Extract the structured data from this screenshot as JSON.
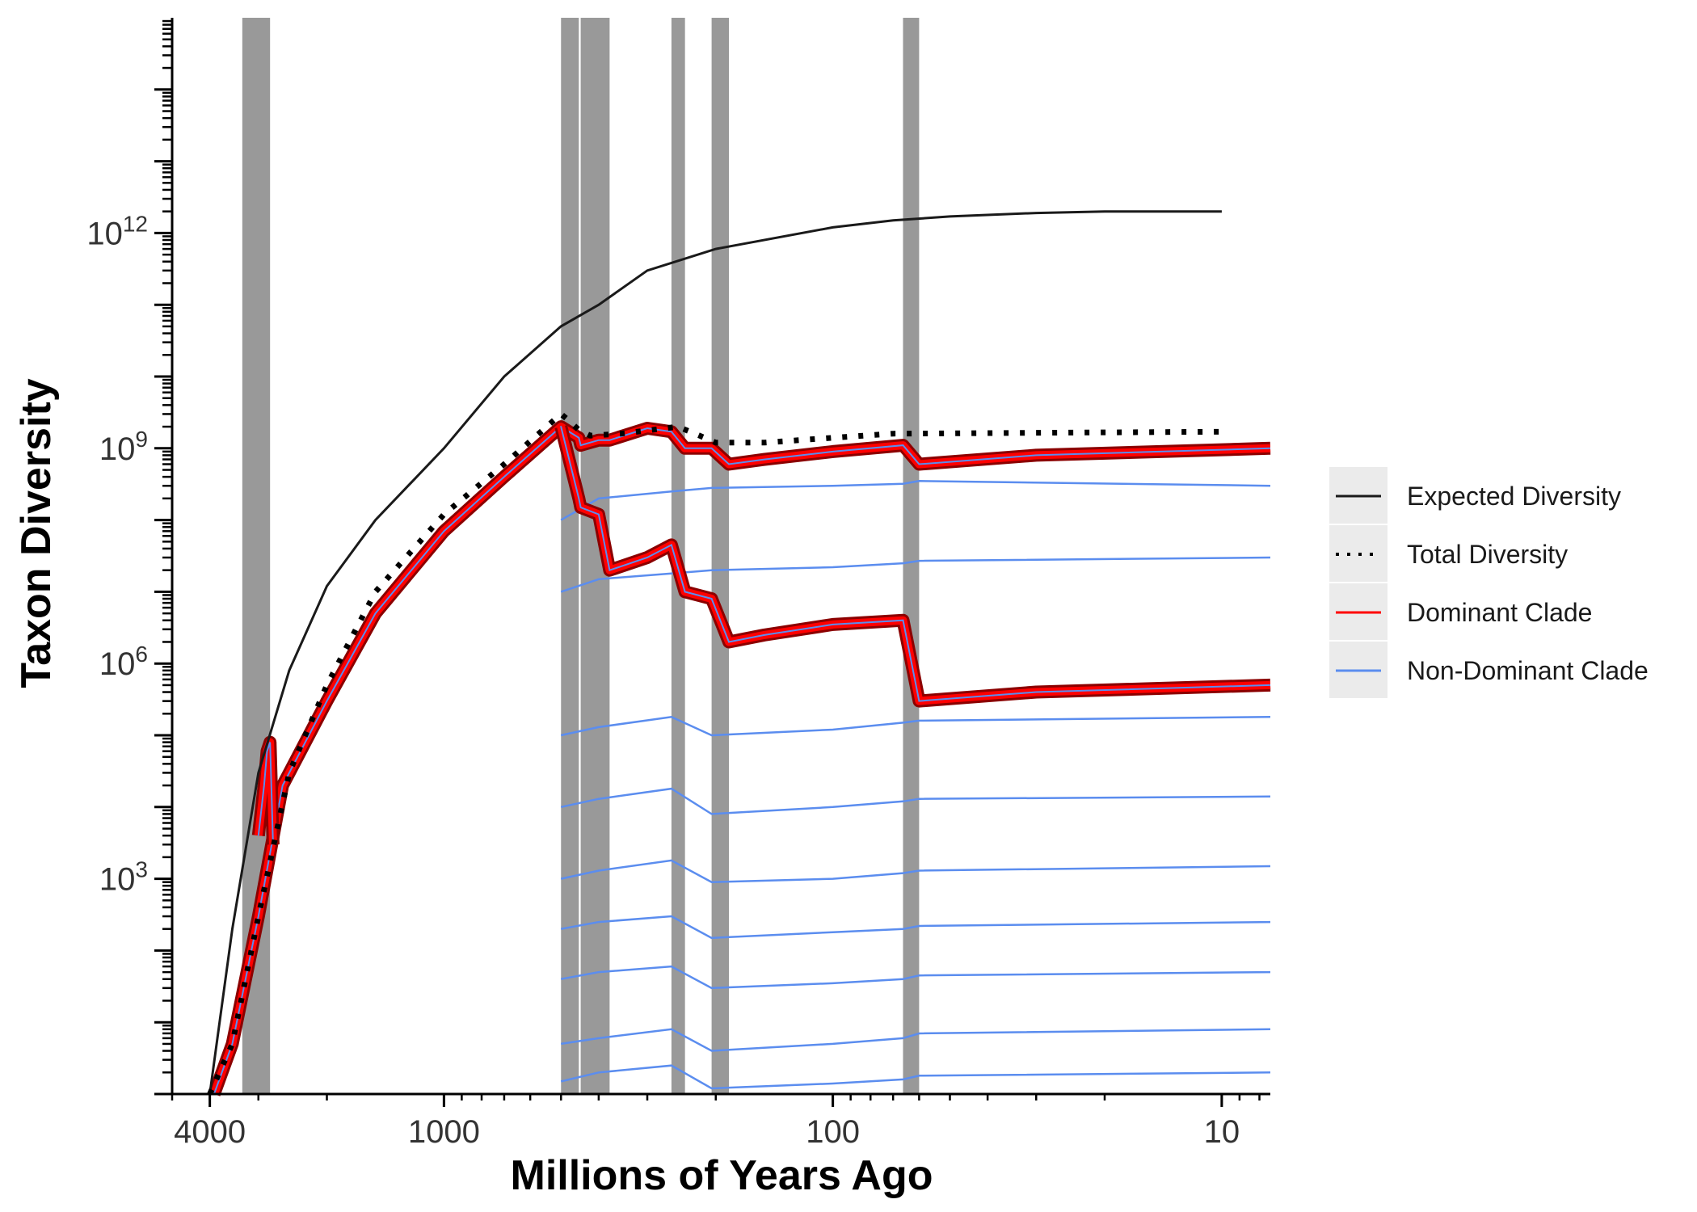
{
  "chart_data": {
    "type": "line",
    "title": "",
    "xlabel": "Millions of Years Ago",
    "ylabel": "Taxon Diversity",
    "x_scale": "log-reversed",
    "y_scale": "log",
    "xlim": [
      5000,
      7.5
    ],
    "ylim": [
      1,
      1000000000000000.0
    ],
    "x_ticks": [
      {
        "value": 4000,
        "label": "4000"
      },
      {
        "value": 1000,
        "label": "1000"
      },
      {
        "value": 100,
        "label": "100"
      },
      {
        "value": 10,
        "label": "10"
      }
    ],
    "y_ticks": [
      {
        "value": 1000,
        "base": "10",
        "exp": "3"
      },
      {
        "value": 1000000,
        "base": "10",
        "exp": "6"
      },
      {
        "value": 1000000000,
        "base": "10",
        "exp": "9"
      },
      {
        "value": 1000000000000,
        "base": "10",
        "exp": "12"
      }
    ],
    "grid": false,
    "legend_position": "right",
    "mass_extinction_bands": [
      [
        3300,
        2800
      ],
      [
        500,
        450
      ],
      [
        445,
        375
      ],
      [
        260,
        240
      ],
      [
        205,
        185
      ],
      [
        66,
        60
      ]
    ],
    "colors": {
      "expected": "#1a1a1a",
      "total": "#000000",
      "dominant": "#ff0000",
      "dominant_outline": "#8b0000",
      "non_dominant": "#5b8def",
      "band": "#999999",
      "legend_key_bg": "#ebebeb"
    },
    "legend": [
      {
        "label": "Expected Diversity",
        "style": "solid",
        "color": "#1a1a1a"
      },
      {
        "label": "Total Diversity",
        "style": "dotted",
        "color": "#000000"
      },
      {
        "label": "Dominant Clade",
        "style": "solid",
        "color": "#ff0000"
      },
      {
        "label": "Non-Dominant Clade",
        "style": "solid",
        "color": "#5b8def"
      }
    ],
    "series": [
      {
        "name": "Expected Diversity",
        "x": [
          4000,
          3500,
          3000,
          2500,
          2000,
          1500,
          1000,
          700,
          500,
          400,
          300,
          200,
          100,
          70,
          50,
          30,
          20,
          10
        ],
        "y": [
          1,
          200.0,
          30000.0,
          800000.0,
          12000000.0,
          100000000.0,
          1000000000.0,
          10000000000.0,
          50000000000.0,
          100000000000.0,
          300000000000.0,
          600000000000.0,
          1200000000000.0,
          1500000000000.0,
          1700000000000.0,
          1900000000000.0,
          2000000000000.0,
          2000000000000.0
        ]
      },
      {
        "name": "Total Diversity",
        "x": [
          4000,
          3500,
          3000,
          2500,
          2000,
          1500,
          1000,
          700,
          500,
          480,
          450,
          420,
          350,
          250,
          220,
          200,
          150,
          100,
          70,
          10
        ],
        "y": [
          1,
          5,
          300.0,
          30000.0,
          500000.0,
          10000000.0,
          120000000.0,
          600000000.0,
          3000000000.0,
          2500000000.0,
          1800000000.0,
          1500000000.0,
          1600000000.0,
          2000000000.0,
          1500000000.0,
          1200000000.0,
          1200000000.0,
          1400000000.0,
          1600000000.0,
          1700000000.0
        ]
      },
      {
        "name": "Dominant Clade",
        "x": [
          3900,
          3500,
          3000,
          2600,
          2000,
          1500,
          1000,
          700,
          500,
          450,
          445,
          400,
          375,
          300,
          260,
          240,
          205,
          185,
          150,
          100,
          66,
          60,
          30,
          7.5
        ],
        "y": [
          1,
          5,
          300.0,
          20000.0,
          300000.0,
          5000000.0,
          70000000.0,
          400000000.0,
          2000000000.0,
          1400000000.0,
          1100000000.0,
          1300000000.0,
          1300000000.0,
          1900000000.0,
          1700000000.0,
          1000000000.0,
          1000000000.0,
          600000000.0,
          700000000.0,
          900000000.0,
          1100000000.0,
          600000000.0,
          800000000.0,
          1000000000.0
        ]
      },
      {
        "name": "Dominant Clade",
        "x": [
          500,
          450,
          445,
          400,
          375,
          300,
          260,
          240,
          205,
          185,
          150,
          100,
          66,
          60,
          30,
          7.5
        ],
        "y": [
          2000000000.0,
          200000000.0,
          150000000.0,
          120000000.0,
          20000000.0,
          30000000.0,
          45000000.0,
          10000000.0,
          8000000.0,
          2000000.0,
          2500000.0,
          3500000.0,
          4000000.0,
          300000.0,
          400000.0,
          500000.0
        ]
      },
      {
        "name": "Dominant Clade",
        "x": [
          3000,
          2900,
          2850,
          2800,
          2750
        ],
        "y": [
          4000.0,
          20000.0,
          60000.0,
          80000.0,
          3000.0
        ]
      },
      {
        "name": "Non-Dominant Clade",
        "x": [
          500,
          400,
          260,
          205,
          100,
          66,
          60,
          7.5
        ],
        "y": [
          100000000.0,
          200000000.0,
          250000000.0,
          280000000.0,
          300000000.0,
          320000000.0,
          350000000.0,
          300000000.0
        ]
      },
      {
        "name": "Non-Dominant Clade",
        "x": [
          500,
          400,
          260,
          205,
          100,
          66,
          60,
          7.5
        ],
        "y": [
          10000000.0,
          15000000.0,
          18000000.0,
          20000000.0,
          22000000.0,
          25000000.0,
          27000000.0,
          30000000.0
        ]
      },
      {
        "name": "Non-Dominant Clade",
        "x": [
          500,
          400,
          260,
          205,
          100,
          66,
          60,
          7.5
        ],
        "y": [
          100000.0,
          130000.0,
          180000.0,
          100000.0,
          120000.0,
          150000.0,
          160000.0,
          180000.0
        ]
      },
      {
        "name": "Non-Dominant Clade",
        "x": [
          500,
          400,
          260,
          205,
          100,
          66,
          60,
          7.5
        ],
        "y": [
          10000.0,
          13000.0,
          18000.0,
          8000.0,
          10000.0,
          12000.0,
          13000.0,
          14000.0
        ]
      },
      {
        "name": "Non-Dominant Clade",
        "x": [
          500,
          400,
          260,
          205,
          100,
          66,
          60,
          7.5
        ],
        "y": [
          1000.0,
          1300.0,
          1800.0,
          900.0,
          1000.0,
          1200.0,
          1300.0,
          1500.0
        ]
      },
      {
        "name": "Non-Dominant Clade",
        "x": [
          500,
          400,
          260,
          205,
          100,
          66,
          60,
          7.5
        ],
        "y": [
          200.0,
          250.0,
          300.0,
          150.0,
          180.0,
          200.0,
          220.0,
          250.0
        ]
      },
      {
        "name": "Non-Dominant Clade",
        "x": [
          500,
          400,
          260,
          205,
          100,
          66,
          60,
          7.5
        ],
        "y": [
          40.0,
          50.0,
          60.0,
          30.0,
          35.0,
          40.0,
          45.0,
          50.0
        ]
      },
      {
        "name": "Non-Dominant Clade",
        "x": [
          500,
          400,
          260,
          205,
          100,
          66,
          60,
          7.5
        ],
        "y": [
          5,
          6,
          8,
          4,
          5,
          6,
          7,
          8
        ]
      },
      {
        "name": "Non-Dominant Clade",
        "x": [
          500,
          400,
          260,
          205,
          100,
          66,
          60,
          7.5
        ],
        "y": [
          1.5,
          2,
          2.5,
          1.2,
          1.4,
          1.6,
          1.8,
          2
        ]
      }
    ]
  }
}
